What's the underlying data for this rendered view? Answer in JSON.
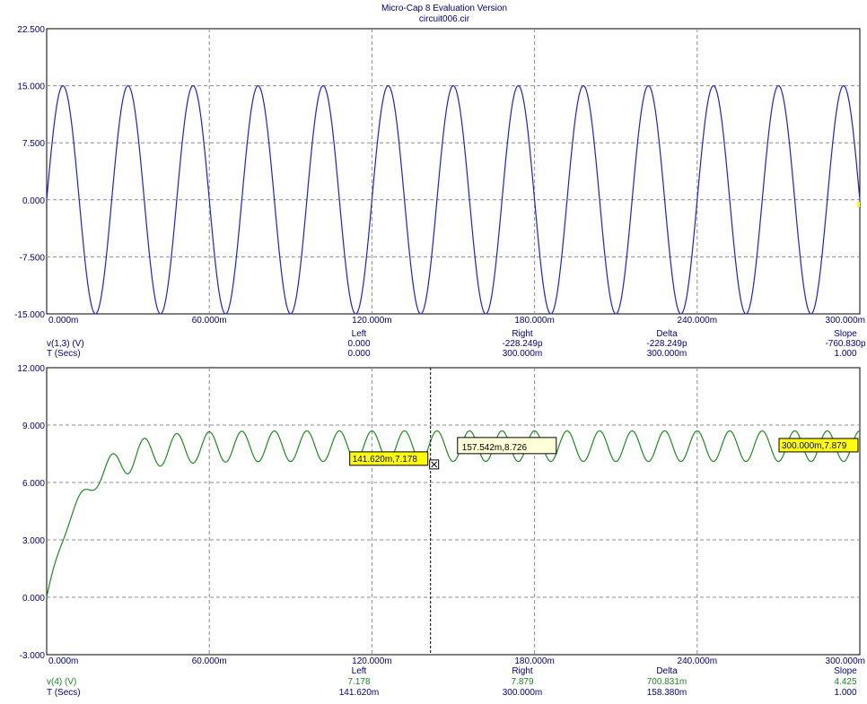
{
  "window": {
    "title": "Micro-Cap 8 Evaluation Version",
    "subtitle": "circuit006.cir"
  },
  "colors": {
    "trace_top": "#1f1fdc",
    "trace_bottom": "#1f8a1f",
    "grid": "#8c8c8c",
    "text": "#000080",
    "tag_yellow": "#ffff00",
    "tag_cream": "#ffffd8"
  },
  "chart_data": [
    {
      "type": "line",
      "trace_kind": "sine",
      "amplitude": 15,
      "cycles": 12.5,
      "x_range": [
        0,
        0.3
      ],
      "ylim": [
        -15,
        22.5
      ],
      "yticks": [
        "22.500",
        "15.000",
        "7.500",
        "0.000",
        "-7.500",
        "-15.000"
      ],
      "ytick_values": [
        22.5,
        15,
        7.5,
        0,
        -7.5,
        -15
      ],
      "xticks": [
        "0.000m",
        "60.000m",
        "120.000m",
        "180.000m",
        "240.000m",
        "300.000m"
      ],
      "xtick_values": [
        0,
        0.06,
        0.12,
        0.18,
        0.24,
        0.3
      ],
      "grid": true,
      "readout": {
        "headers": [
          "Left",
          "Right",
          "Delta",
          "Slope"
        ],
        "row1": {
          "label": "v(1,3) (V)",
          "values": [
            "0.000",
            "-228.249p",
            "-228.249p",
            "-760.830p"
          ]
        },
        "row2": {
          "label": "T (Secs)",
          "values": [
            "0.000",
            "300.000m",
            "300.000m",
            "1.000"
          ]
        }
      }
    },
    {
      "type": "line",
      "trace_kind": "rectified-ripple",
      "settle_value": 7.9,
      "ripple_amplitude": 0.8,
      "cycles": 25,
      "x_range": [
        0,
        0.3
      ],
      "ylim": [
        -3,
        12
      ],
      "yticks": [
        "12.000",
        "9.000",
        "6.000",
        "3.000",
        "0.000",
        "-3.000"
      ],
      "ytick_values": [
        12,
        9,
        6,
        3,
        0,
        -3
      ],
      "xticks": [
        "0.000m",
        "60.000m",
        "120.000m",
        "180.000m",
        "240.000m",
        "300.000m"
      ],
      "xtick_values": [
        0,
        0.06,
        0.12,
        0.18,
        0.24,
        0.3
      ],
      "grid": true,
      "cursor": {
        "x": 0.14162
      },
      "tags": {
        "left": {
          "x": 0.14162,
          "y": 7.178,
          "text": "141.620m,7.178"
        },
        "right": {
          "x": 0.3,
          "y": 7.879,
          "text": "300.000m,7.879"
        },
        "hover": {
          "x": 0.157542,
          "y": 8.726,
          "text": "157.542m,8.726"
        }
      },
      "readout": {
        "headers": [
          "Left",
          "Right",
          "Delta",
          "Slope"
        ],
        "row1": {
          "label": "v(4) (V)",
          "values": [
            "7.178",
            "7.879",
            "700.831m",
            "4.425"
          ]
        },
        "row2": {
          "label": "T (Secs)",
          "values": [
            "141.620m",
            "300.000m",
            "158.380m",
            "1.000"
          ]
        }
      }
    }
  ]
}
